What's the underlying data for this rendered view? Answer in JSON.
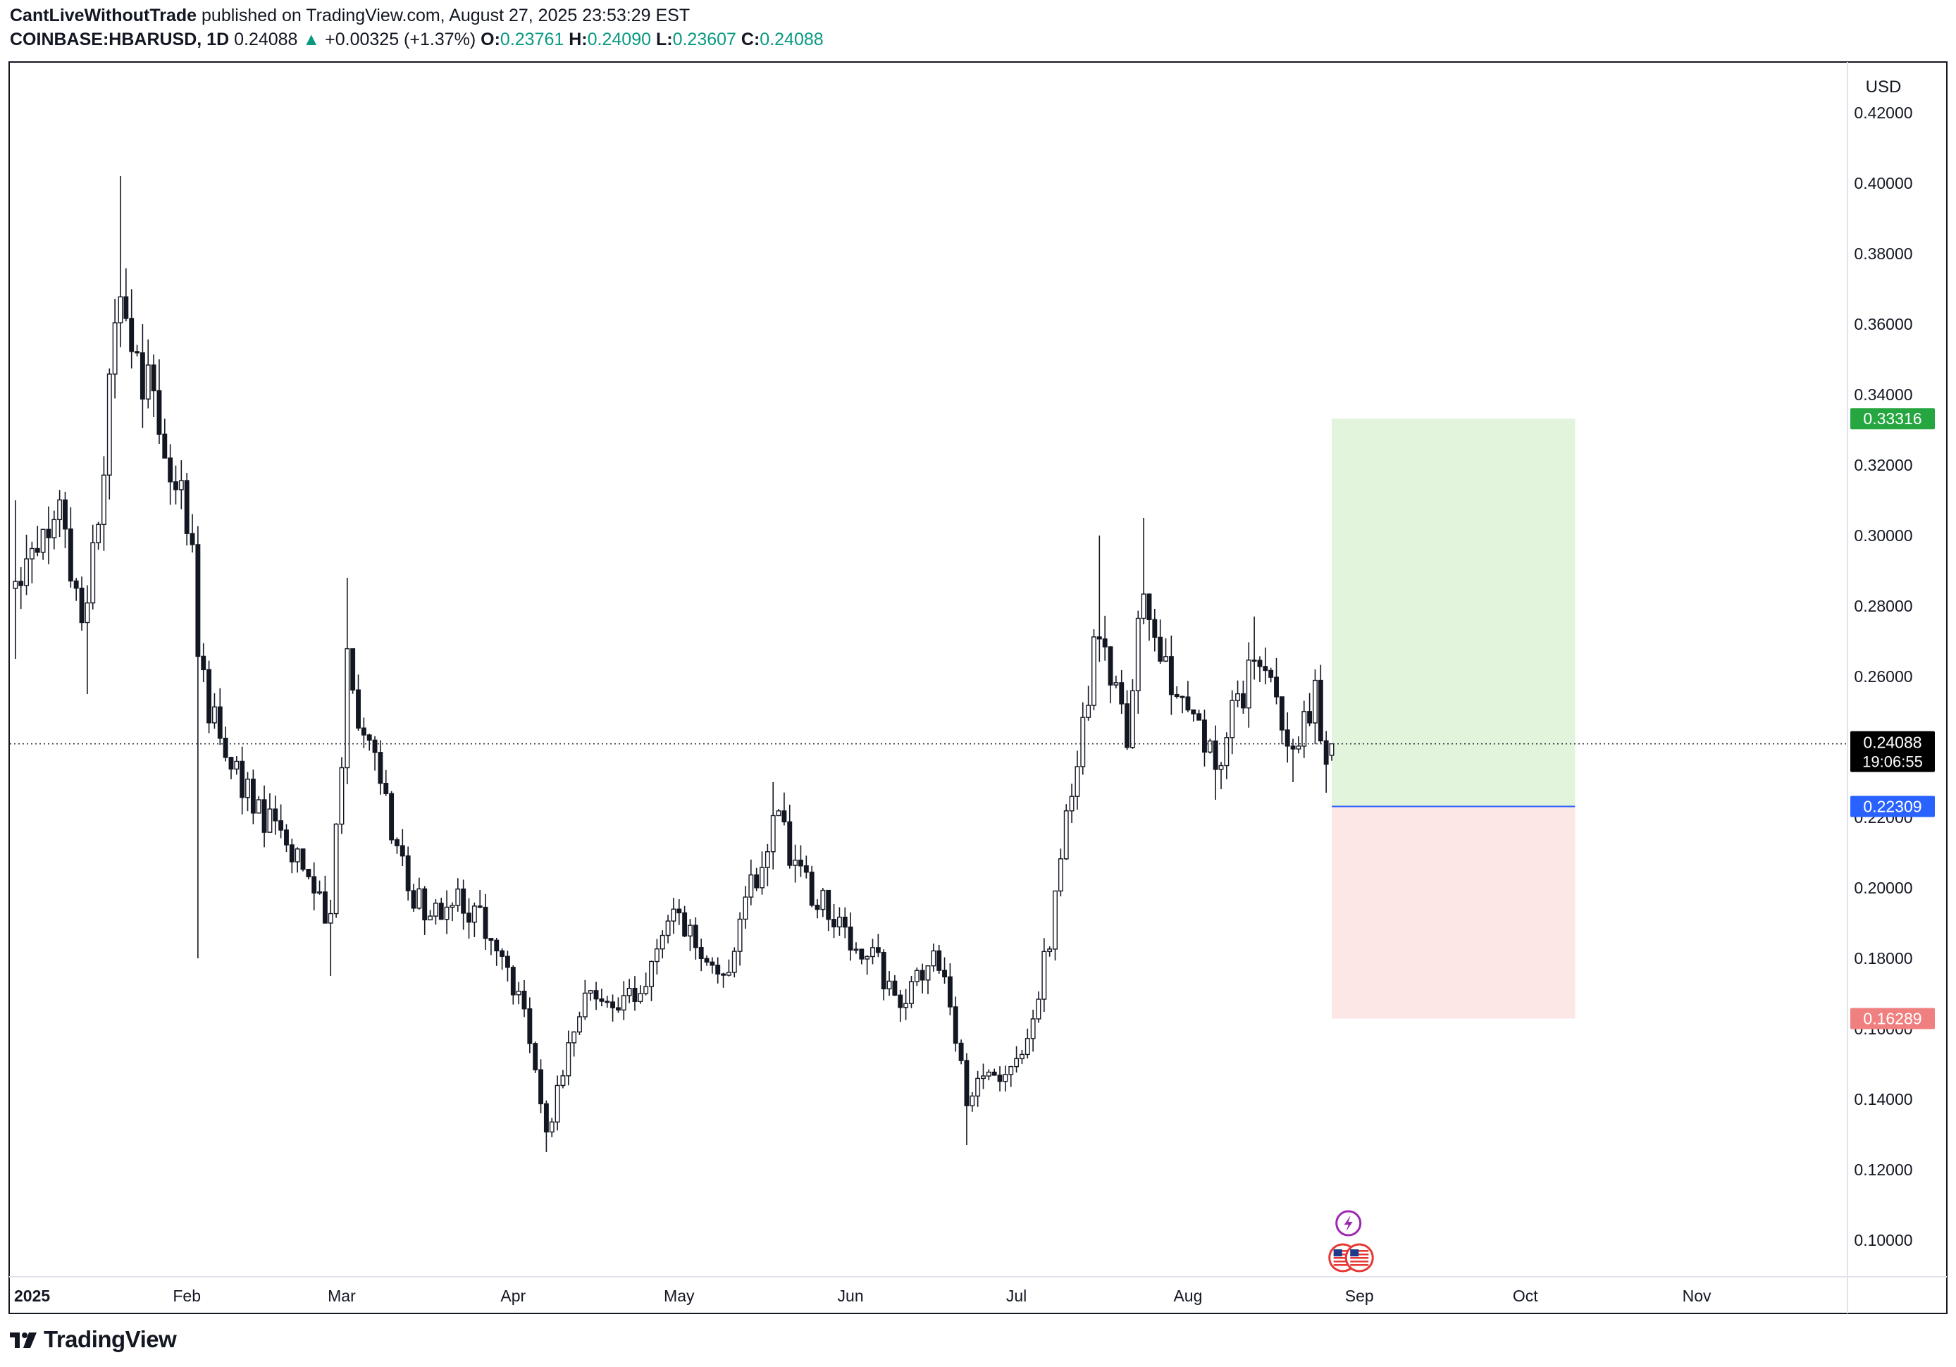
{
  "header": {
    "author": "CantLiveWithoutTrade",
    "published_text": "published on TradingView.com, August 27, 2025 23:53:29 EST",
    "symbol": "COINBASE:HBARUSD, 1D",
    "last_price": "0.24088",
    "change": "+0.00325 (+1.37%)",
    "ohlc": [
      {
        "label": "O:",
        "value": "0.23761"
      },
      {
        "label": "H:",
        "value": "0.24090"
      },
      {
        "label": "L:",
        "value": "0.23607"
      },
      {
        "label": "C:",
        "value": "0.24088"
      }
    ]
  },
  "footer": {
    "brand": "TradingView"
  },
  "colors": {
    "up": "#089981",
    "candle": "#131722",
    "profit_zone": "#e3f4dc",
    "loss_zone": "#fde6e6",
    "target_badge": "#26a641",
    "entry_badge": "#2962ff",
    "stop_badge": "#f08080",
    "price_badge": "#000000"
  },
  "chart_data": {
    "type": "candlestick",
    "currency": "USD",
    "y_ticks": [
      "0.42000",
      "0.40000",
      "0.38000",
      "0.36000",
      "0.34000",
      "0.32000",
      "0.30000",
      "0.28000",
      "0.26000",
      "0.24000",
      "0.22000",
      "0.20000",
      "0.18000",
      "0.16000",
      "0.14000",
      "0.12000",
      "0.10000"
    ],
    "ylim": [
      0.1,
      0.42
    ],
    "x_ticks": [
      {
        "label": "2025",
        "date": "2025-01-01",
        "bold": true
      },
      {
        "label": "Feb",
        "date": "2025-02-01"
      },
      {
        "label": "Mar",
        "date": "2025-03-01"
      },
      {
        "label": "Apr",
        "date": "2025-04-01"
      },
      {
        "label": "May",
        "date": "2025-05-01"
      },
      {
        "label": "Jun",
        "date": "2025-06-01"
      },
      {
        "label": "Jul",
        "date": "2025-07-01"
      },
      {
        "label": "Aug",
        "date": "2025-08-01"
      },
      {
        "label": "Sep",
        "date": "2025-09-01"
      },
      {
        "label": "Oct",
        "date": "2025-10-01"
      },
      {
        "label": "Nov",
        "date": "2025-11-01"
      }
    ],
    "xlim": [
      "2024-12-31",
      "2025-11-28"
    ],
    "anchors": [
      {
        "date": "2025-01-01",
        "price": 0.285,
        "low": 0.265,
        "high": 0.31
      },
      {
        "date": "2025-01-08",
        "price": 0.31
      },
      {
        "date": "2025-01-14",
        "price": 0.275,
        "low": 0.255
      },
      {
        "date": "2025-01-20",
        "price": 0.37,
        "high": 0.402
      },
      {
        "date": "2025-01-27",
        "price": 0.33,
        "high": 0.35
      },
      {
        "date": "2025-02-02",
        "price": 0.3
      },
      {
        "date": "2025-02-03",
        "price": 0.26,
        "low": 0.18
      },
      {
        "date": "2025-02-10",
        "price": 0.232
      },
      {
        "date": "2025-02-20",
        "price": 0.21
      },
      {
        "date": "2025-02-27",
        "price": 0.19,
        "low": 0.175
      },
      {
        "date": "2025-03-02",
        "price": 0.262,
        "high": 0.288
      },
      {
        "date": "2025-03-08",
        "price": 0.23
      },
      {
        "date": "2025-03-14",
        "price": 0.195
      },
      {
        "date": "2025-03-25",
        "price": 0.195
      },
      {
        "date": "2025-04-03",
        "price": 0.165
      },
      {
        "date": "2025-04-07",
        "price": 0.13,
        "low": 0.125
      },
      {
        "date": "2025-04-14",
        "price": 0.17
      },
      {
        "date": "2025-04-22",
        "price": 0.168
      },
      {
        "date": "2025-04-30",
        "price": 0.19
      },
      {
        "date": "2025-05-10",
        "price": 0.175
      },
      {
        "date": "2025-05-14",
        "price": 0.2
      },
      {
        "date": "2025-05-18",
        "price": 0.22,
        "high": 0.23
      },
      {
        "date": "2025-05-25",
        "price": 0.2
      },
      {
        "date": "2025-06-02",
        "price": 0.185
      },
      {
        "date": "2025-06-10",
        "price": 0.17
      },
      {
        "date": "2025-06-17",
        "price": 0.18
      },
      {
        "date": "2025-06-22",
        "price": 0.14,
        "low": 0.127
      },
      {
        "date": "2025-06-30",
        "price": 0.15
      },
      {
        "date": "2025-07-04",
        "price": 0.16
      },
      {
        "date": "2025-07-08",
        "price": 0.195
      },
      {
        "date": "2025-07-11",
        "price": 0.23
      },
      {
        "date": "2025-07-16",
        "price": 0.275,
        "high": 0.3
      },
      {
        "date": "2025-07-21",
        "price": 0.245
      },
      {
        "date": "2025-07-24",
        "price": 0.285,
        "high": 0.305
      },
      {
        "date": "2025-07-31",
        "price": 0.25
      },
      {
        "date": "2025-08-06",
        "price": 0.235,
        "low": 0.225
      },
      {
        "date": "2025-08-13",
        "price": 0.265,
        "high": 0.277
      },
      {
        "date": "2025-08-20",
        "price": 0.24,
        "low": 0.23
      },
      {
        "date": "2025-08-24",
        "price": 0.255,
        "high": 0.262
      },
      {
        "date": "2025-08-26",
        "price": 0.235,
        "low": 0.227
      },
      {
        "date": "2025-08-27",
        "price": 0.24088
      }
    ],
    "last_candle": {
      "date": "2025-08-27",
      "open": 0.23761,
      "high": 0.2409,
      "low": 0.23607,
      "close": 0.24088
    },
    "position": {
      "start_date": "2025-08-27",
      "end_date": "2025-10-10",
      "target": 0.33316,
      "entry": 0.22309,
      "stop": 0.16289,
      "target_label": "0.33316",
      "entry_label": "0.22309",
      "stop_label": "0.16289"
    },
    "current_price_label": "0.24088",
    "countdown": "19:06:55",
    "event_markers": [
      {
        "date": "2025-08-29",
        "icon": "lightning-icon",
        "row": 0
      },
      {
        "date": "2025-08-29",
        "icon": "us-flag-icon",
        "row": 1
      },
      {
        "date": "2025-09-01",
        "icon": "us-flag-icon",
        "row": 1
      }
    ]
  }
}
